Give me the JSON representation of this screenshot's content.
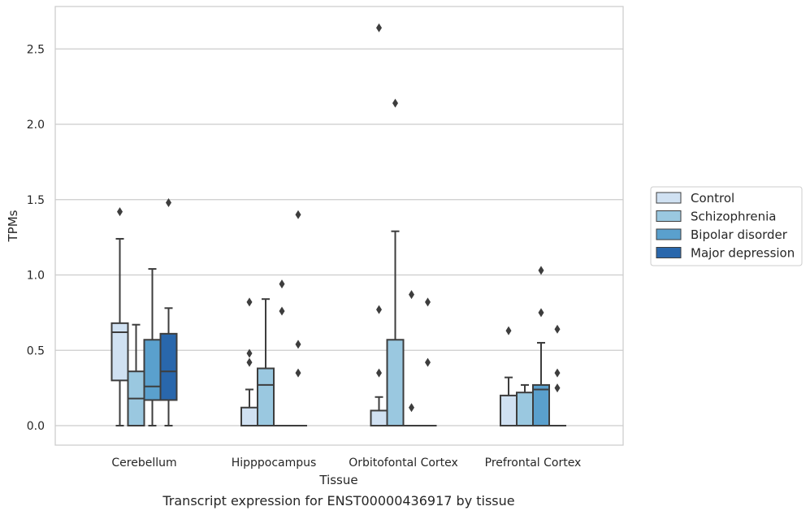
{
  "caption": "Transcript expression for ENST00000436917 by tissue",
  "chart_data": {
    "type": "box",
    "xlabel": "Tissue",
    "ylabel": "TPMs",
    "ylim": [
      -0.13,
      2.78
    ],
    "yticks": [
      0.0,
      0.5,
      1.0,
      1.5,
      2.0,
      2.5
    ],
    "grid": true,
    "legend_position": "right",
    "categories": [
      "Cerebellum",
      "Hipppocampus",
      "Orbitofontal Cortex",
      "Prefrontal Cortex"
    ],
    "series": [
      {
        "name": "Control",
        "color": "#d0e1f2",
        "boxes": [
          {
            "q1": 0.3,
            "median": 0.62,
            "q3": 0.68,
            "whisker_low": 0.0,
            "whisker_high": 1.24,
            "outliers": [
              1.42
            ]
          },
          {
            "q1": 0.0,
            "median": 0.0,
            "q3": 0.12,
            "whisker_low": 0.0,
            "whisker_high": 0.24,
            "outliers": [
              0.42,
              0.48,
              0.82
            ]
          },
          {
            "q1": 0.0,
            "median": 0.0,
            "q3": 0.1,
            "whisker_low": 0.0,
            "whisker_high": 0.19,
            "outliers": [
              0.35,
              0.77,
              2.64
            ]
          },
          {
            "q1": 0.0,
            "median": 0.0,
            "q3": 0.2,
            "whisker_low": 0.0,
            "whisker_high": 0.32,
            "outliers": [
              0.63
            ]
          }
        ]
      },
      {
        "name": "Schizophrenia",
        "color": "#9ac8e0",
        "boxes": [
          {
            "q1": 0.0,
            "median": 0.18,
            "q3": 0.36,
            "whisker_low": 0.0,
            "whisker_high": 0.67,
            "outliers": []
          },
          {
            "q1": 0.0,
            "median": 0.27,
            "q3": 0.38,
            "whisker_low": 0.0,
            "whisker_high": 0.84,
            "outliers": []
          },
          {
            "q1": 0.0,
            "median": 0.0,
            "q3": 0.57,
            "whisker_low": 0.0,
            "whisker_high": 1.29,
            "outliers": [
              2.14
            ]
          },
          {
            "q1": 0.0,
            "median": 0.0,
            "q3": 0.22,
            "whisker_low": 0.0,
            "whisker_high": 0.27,
            "outliers": []
          }
        ]
      },
      {
        "name": "Bipolar disorder",
        "color": "#5aa0cd",
        "boxes": [
          {
            "q1": 0.17,
            "median": 0.26,
            "q3": 0.57,
            "whisker_low": 0.0,
            "whisker_high": 1.04,
            "outliers": []
          },
          {
            "q1": 0.0,
            "median": 0.0,
            "q3": 0.0,
            "whisker_low": 0.0,
            "whisker_high": 0.0,
            "outliers": [
              0.76,
              0.94
            ]
          },
          {
            "q1": 0.0,
            "median": 0.0,
            "q3": 0.0,
            "whisker_low": 0.0,
            "whisker_high": 0.0,
            "outliers": [
              0.12,
              0.87
            ]
          },
          {
            "q1": 0.0,
            "median": 0.24,
            "q3": 0.27,
            "whisker_low": 0.0,
            "whisker_high": 0.55,
            "outliers": [
              0.75,
              1.03
            ]
          }
        ]
      },
      {
        "name": "Major depression",
        "color": "#2967ac",
        "boxes": [
          {
            "q1": 0.17,
            "median": 0.36,
            "q3": 0.61,
            "whisker_low": 0.0,
            "whisker_high": 0.78,
            "outliers": [
              1.48
            ]
          },
          {
            "q1": 0.0,
            "median": 0.0,
            "q3": 0.0,
            "whisker_low": 0.0,
            "whisker_high": 0.0,
            "outliers": [
              0.35,
              0.54,
              1.4
            ]
          },
          {
            "q1": 0.0,
            "median": 0.0,
            "q3": 0.0,
            "whisker_low": 0.0,
            "whisker_high": 0.0,
            "outliers": [
              0.42,
              0.82
            ]
          },
          {
            "q1": 0.0,
            "median": 0.0,
            "q3": 0.0,
            "whisker_low": 0.0,
            "whisker_high": 0.0,
            "outliers": [
              0.25,
              0.35,
              0.64
            ]
          }
        ]
      }
    ]
  }
}
